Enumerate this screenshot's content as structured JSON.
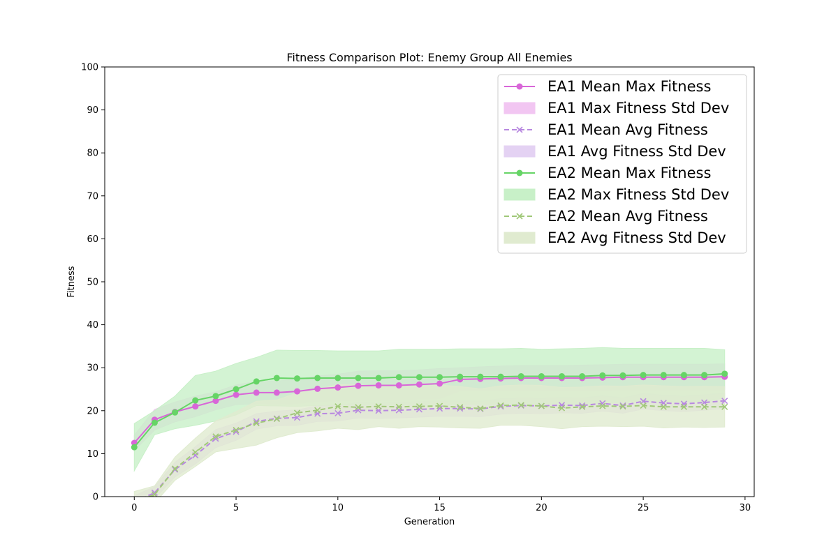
{
  "chart_data": {
    "type": "line",
    "title": "Fitness Comparison Plot: Enemy Group All Enemies",
    "xlabel": "Generation",
    "ylabel": "Fitness",
    "xlim": [
      -1.45,
      30.45
    ],
    "ylim": [
      0,
      100
    ],
    "xticks": [
      0,
      5,
      10,
      15,
      20,
      25,
      30
    ],
    "yticks": [
      0,
      10,
      20,
      30,
      40,
      50,
      60,
      70,
      80,
      90,
      100
    ],
    "legend_position": "upper-right",
    "x": [
      0,
      1,
      2,
      3,
      4,
      5,
      6,
      7,
      8,
      9,
      10,
      11,
      12,
      13,
      14,
      15,
      16,
      17,
      18,
      19,
      20,
      21,
      22,
      23,
      24,
      25,
      26,
      27,
      28,
      29
    ],
    "series": [
      {
        "name": "EA1 Mean Max Fitness",
        "std_name": "EA1 Max Fitness Std Dev",
        "color": "#d866d8",
        "fill": "#f2c6f2",
        "style": "solid",
        "marker": "circle",
        "values": [
          12.5,
          17.9,
          19.7,
          21.0,
          22.3,
          23.7,
          24.2,
          24.2,
          24.5,
          25.1,
          25.4,
          25.8,
          25.9,
          25.9,
          26.1,
          26.3,
          27.3,
          27.4,
          27.5,
          27.6,
          27.6,
          27.6,
          27.6,
          27.7,
          27.8,
          27.8,
          27.8,
          27.8,
          27.8,
          27.9
        ],
        "std": [
          1.8,
          2.4,
          2.3,
          2.4,
          2.1,
          2.3,
          2.6,
          2.7,
          2.8,
          3.0,
          3.1,
          3.4,
          3.4,
          3.4,
          3.4,
          3.5,
          2.7,
          2.8,
          2.9,
          2.9,
          2.9,
          2.9,
          3.0,
          3.0,
          3.0,
          3.0,
          3.0,
          3.0,
          3.0,
          3.0
        ]
      },
      {
        "name": "EA1 Mean Avg Fitness",
        "std_name": "EA1 Avg Fitness Std Dev",
        "color": "#b888e0",
        "fill": "#e4d2f3",
        "style": "dashed",
        "marker": "x",
        "values": [
          -1.2,
          0.9,
          6.3,
          9.6,
          13.5,
          15.1,
          17.5,
          18.2,
          18.4,
          19.3,
          19.4,
          20.1,
          20.0,
          20.1,
          20.3,
          20.5,
          20.5,
          20.4,
          21.0,
          21.2,
          21.1,
          21.3,
          21.2,
          21.7,
          21.2,
          22.2,
          21.8,
          21.6,
          21.9,
          22.3
        ],
        "std": [
          1.4,
          1.4,
          1.7,
          2.0,
          2.1,
          2.0,
          1.8,
          1.7,
          1.8,
          1.8,
          1.8,
          1.8,
          1.8,
          1.8,
          1.8,
          1.8,
          1.8,
          1.8,
          1.8,
          1.8,
          1.8,
          1.8,
          1.8,
          1.8,
          1.8,
          1.8,
          1.8,
          1.8,
          1.8,
          1.8
        ]
      },
      {
        "name": "EA2 Mean Max Fitness",
        "std_name": "EA2 Max Fitness Std Dev",
        "color": "#66d466",
        "fill": "#c8f0c8",
        "style": "solid",
        "marker": "circle",
        "values": [
          11.5,
          17.2,
          19.6,
          22.4,
          23.4,
          25.0,
          26.8,
          27.6,
          27.5,
          27.6,
          27.6,
          27.6,
          27.6,
          27.8,
          27.8,
          27.8,
          27.9,
          27.9,
          27.9,
          28.0,
          28.0,
          28.0,
          28.0,
          28.2,
          28.2,
          28.3,
          28.3,
          28.3,
          28.3,
          28.6
        ],
        "std": [
          5.5,
          2.8,
          3.8,
          5.8,
          5.8,
          6.0,
          5.6,
          6.5,
          6.5,
          6.4,
          6.3,
          6.3,
          6.3,
          6.5,
          6.5,
          6.5,
          6.5,
          6.5,
          6.5,
          6.5,
          6.3,
          6.4,
          6.5,
          6.5,
          6.3,
          6.2,
          6.2,
          6.2,
          6.2,
          5.6
        ]
      },
      {
        "name": "EA2 Mean Avg Fitness",
        "std_name": "EA2 Avg Fitness Std Dev",
        "color": "#a0c878",
        "fill": "#e0ebd0",
        "style": "dashed",
        "marker": "x",
        "values": [
          -1.3,
          0.5,
          6.5,
          10.3,
          14.0,
          15.5,
          17.1,
          18.1,
          19.5,
          20.1,
          21.0,
          20.8,
          21.0,
          20.9,
          21.0,
          21.1,
          20.8,
          20.5,
          21.2,
          21.3,
          21.1,
          20.6,
          20.9,
          21.1,
          21.0,
          21.2,
          20.9,
          20.9,
          20.9,
          20.9
        ],
        "std": [
          2.5,
          2.0,
          2.7,
          3.3,
          3.6,
          4.3,
          5.1,
          4.4,
          4.6,
          4.8,
          5.1,
          5.2,
          4.7,
          5.0,
          4.7,
          4.9,
          4.8,
          4.6,
          4.6,
          4.7,
          4.8,
          4.8,
          4.6,
          4.7,
          4.7,
          4.8,
          4.9,
          4.7,
          4.8,
          4.7
        ]
      }
    ]
  }
}
